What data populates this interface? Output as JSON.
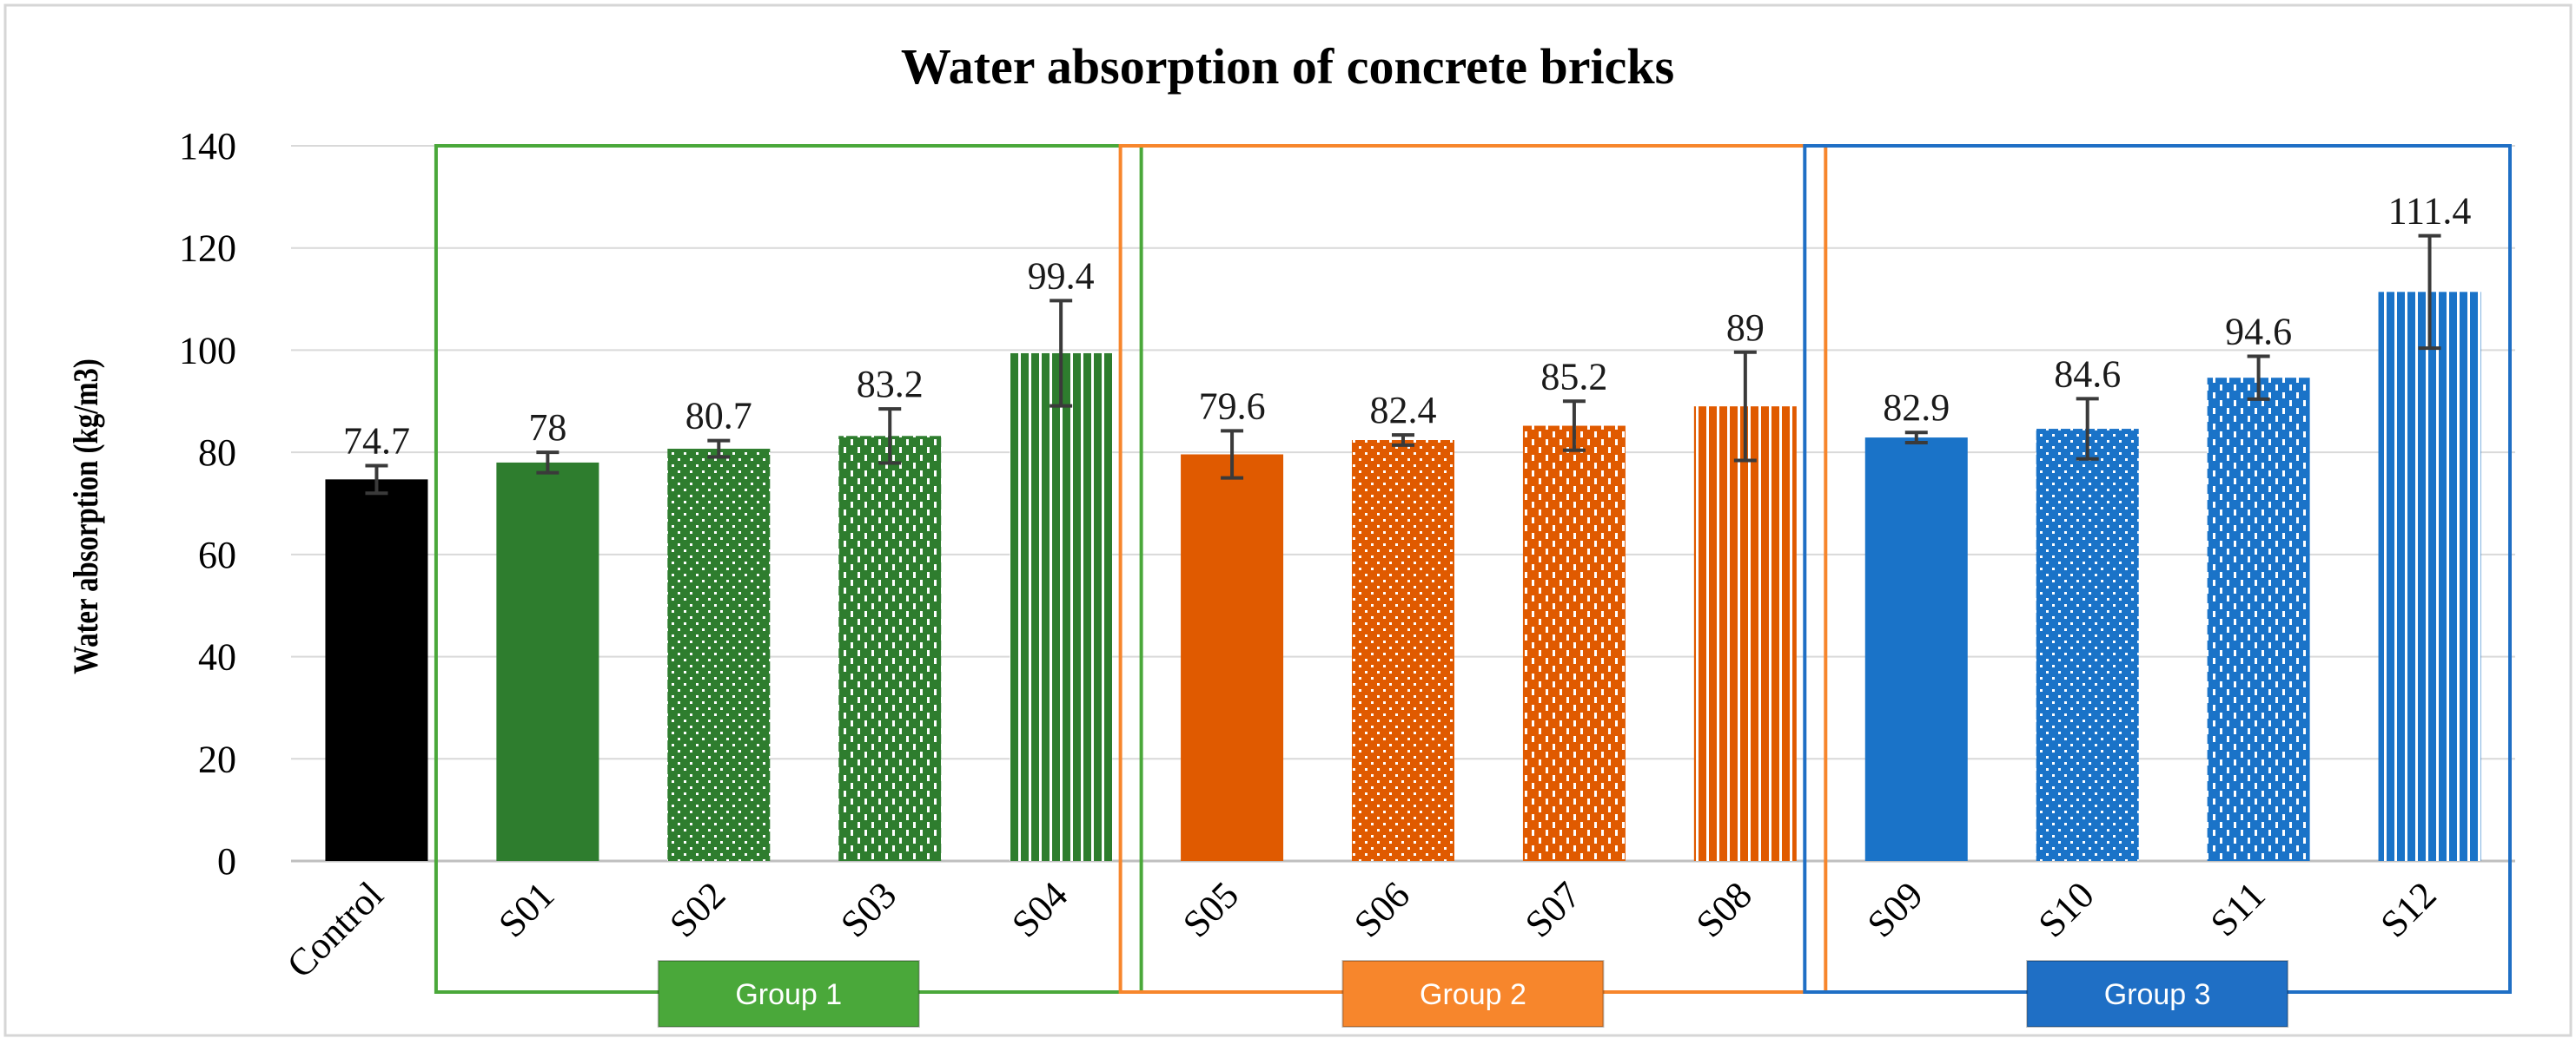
{
  "chart_data": {
    "type": "bar",
    "title": "Water absorption of concrete bricks",
    "xlabel": "",
    "ylabel": "Water absorption (kg/m3)",
    "ylim": [
      0,
      140
    ],
    "yticks": [
      0,
      20,
      40,
      60,
      80,
      100,
      120,
      140
    ],
    "grid": true,
    "categories": [
      "Control",
      "S01",
      "S02",
      "S03",
      "S04",
      "S05",
      "S06",
      "S07",
      "S08",
      "S09",
      "S10",
      "S11",
      "S12"
    ],
    "values": [
      74.7,
      78,
      80.7,
      83.2,
      99.4,
      79.6,
      82.4,
      85.2,
      89,
      82.9,
      84.6,
      94.6,
      111.4
    ],
    "value_labels": [
      "74.7",
      "78",
      "80.7",
      "83.2",
      "99.4",
      "79.6",
      "82.4",
      "85.2",
      "89",
      "82.9",
      "84.6",
      "94.6",
      "111.4"
    ],
    "errors": [
      2.7,
      2.0,
      1.6,
      5.3,
      10.3,
      4.6,
      1.0,
      4.8,
      10.6,
      1.0,
      5.9,
      4.2,
      11.0
    ],
    "bar_colors": [
      "#000000",
      "#2e7d2e",
      "#2e7d2e",
      "#2e7d2e",
      "#2e7d2e",
      "#e05a00",
      "#e05a00",
      "#e05a00",
      "#e05a00",
      "#1a73c8",
      "#1a73c8",
      "#1a73c8",
      "#1a73c8"
    ],
    "bar_patterns": [
      "solid",
      "solid",
      "dots",
      "dashes",
      "stripes",
      "solid",
      "dots",
      "dashes",
      "stripes",
      "solid",
      "dots",
      "dashes",
      "stripes"
    ],
    "groups": [
      {
        "label": "Group 1",
        "members": [
          "S01",
          "S02",
          "S03",
          "S04"
        ],
        "color": "#4aa83a",
        "box_color": "#4aa83a"
      },
      {
        "label": "Group 2",
        "members": [
          "S05",
          "S06",
          "S07",
          "S08"
        ],
        "color": "#f7862c",
        "box_color": "#f7862c"
      },
      {
        "label": "Group 3",
        "members": [
          "S09",
          "S10",
          "S11",
          "S12"
        ],
        "color": "#1f6fc5",
        "box_color": "#1f6fc5"
      }
    ]
  }
}
